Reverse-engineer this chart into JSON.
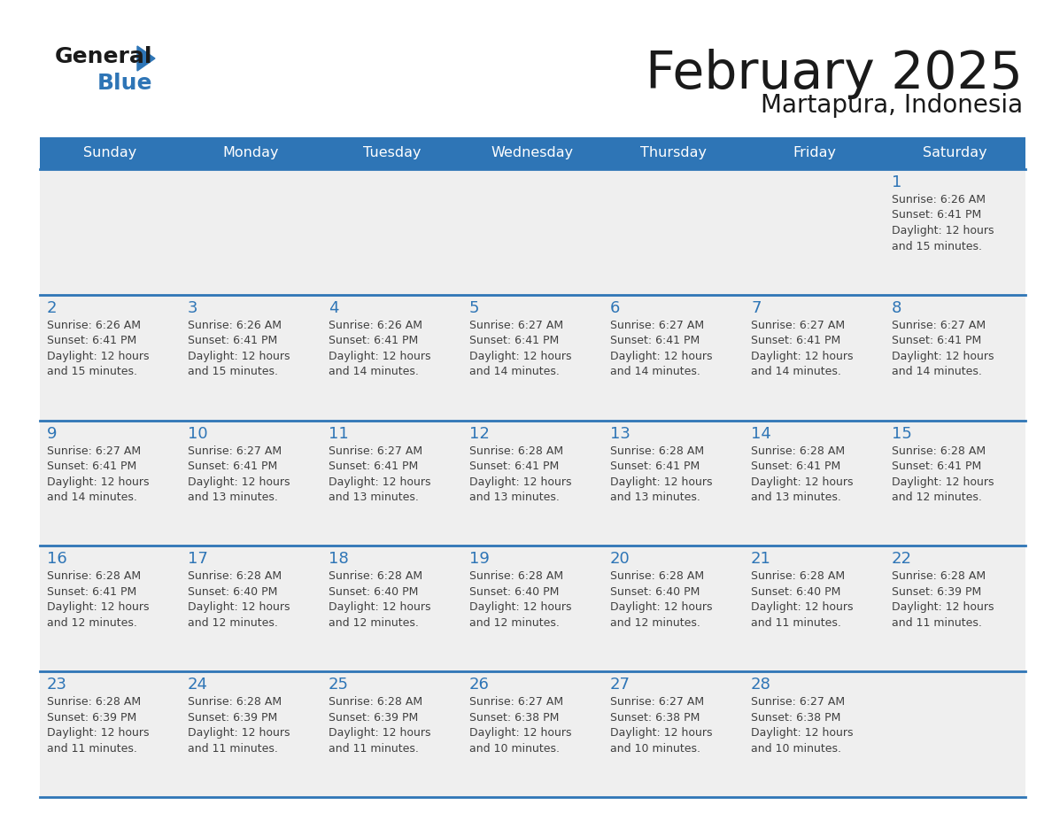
{
  "title": "February 2025",
  "subtitle": "Martapura, Indonesia",
  "header_color": "#2E75B6",
  "header_text_color": "#FFFFFF",
  "day_names": [
    "Sunday",
    "Monday",
    "Tuesday",
    "Wednesday",
    "Thursday",
    "Friday",
    "Saturday"
  ],
  "background_color": "#FFFFFF",
  "cell_bg": "#EFEFEF",
  "separator_color": "#2E75B6",
  "date_color": "#2E75B6",
  "info_color": "#404040",
  "logo_general_color": "#1a1a1a",
  "logo_blue_color": "#2E75B6",
  "logo_triangle_color": "#2E75B6",
  "calendar": [
    [
      null,
      null,
      null,
      null,
      null,
      null,
      {
        "day": 1,
        "sunrise": "6:26 AM",
        "sunset": "6:41 PM",
        "daylight_line1": "Daylight: 12 hours",
        "daylight_line2": "and 15 minutes."
      }
    ],
    [
      {
        "day": 2,
        "sunrise": "6:26 AM",
        "sunset": "6:41 PM",
        "daylight_line1": "Daylight: 12 hours",
        "daylight_line2": "and 15 minutes."
      },
      {
        "day": 3,
        "sunrise": "6:26 AM",
        "sunset": "6:41 PM",
        "daylight_line1": "Daylight: 12 hours",
        "daylight_line2": "and 15 minutes."
      },
      {
        "day": 4,
        "sunrise": "6:26 AM",
        "sunset": "6:41 PM",
        "daylight_line1": "Daylight: 12 hours",
        "daylight_line2": "and 14 minutes."
      },
      {
        "day": 5,
        "sunrise": "6:27 AM",
        "sunset": "6:41 PM",
        "daylight_line1": "Daylight: 12 hours",
        "daylight_line2": "and 14 minutes."
      },
      {
        "day": 6,
        "sunrise": "6:27 AM",
        "sunset": "6:41 PM",
        "daylight_line1": "Daylight: 12 hours",
        "daylight_line2": "and 14 minutes."
      },
      {
        "day": 7,
        "sunrise": "6:27 AM",
        "sunset": "6:41 PM",
        "daylight_line1": "Daylight: 12 hours",
        "daylight_line2": "and 14 minutes."
      },
      {
        "day": 8,
        "sunrise": "6:27 AM",
        "sunset": "6:41 PM",
        "daylight_line1": "Daylight: 12 hours",
        "daylight_line2": "and 14 minutes."
      }
    ],
    [
      {
        "day": 9,
        "sunrise": "6:27 AM",
        "sunset": "6:41 PM",
        "daylight_line1": "Daylight: 12 hours",
        "daylight_line2": "and 14 minutes."
      },
      {
        "day": 10,
        "sunrise": "6:27 AM",
        "sunset": "6:41 PM",
        "daylight_line1": "Daylight: 12 hours",
        "daylight_line2": "and 13 minutes."
      },
      {
        "day": 11,
        "sunrise": "6:27 AM",
        "sunset": "6:41 PM",
        "daylight_line1": "Daylight: 12 hours",
        "daylight_line2": "and 13 minutes."
      },
      {
        "day": 12,
        "sunrise": "6:28 AM",
        "sunset": "6:41 PM",
        "daylight_line1": "Daylight: 12 hours",
        "daylight_line2": "and 13 minutes."
      },
      {
        "day": 13,
        "sunrise": "6:28 AM",
        "sunset": "6:41 PM",
        "daylight_line1": "Daylight: 12 hours",
        "daylight_line2": "and 13 minutes."
      },
      {
        "day": 14,
        "sunrise": "6:28 AM",
        "sunset": "6:41 PM",
        "daylight_line1": "Daylight: 12 hours",
        "daylight_line2": "and 13 minutes."
      },
      {
        "day": 15,
        "sunrise": "6:28 AM",
        "sunset": "6:41 PM",
        "daylight_line1": "Daylight: 12 hours",
        "daylight_line2": "and 12 minutes."
      }
    ],
    [
      {
        "day": 16,
        "sunrise": "6:28 AM",
        "sunset": "6:41 PM",
        "daylight_line1": "Daylight: 12 hours",
        "daylight_line2": "and 12 minutes."
      },
      {
        "day": 17,
        "sunrise": "6:28 AM",
        "sunset": "6:40 PM",
        "daylight_line1": "Daylight: 12 hours",
        "daylight_line2": "and 12 minutes."
      },
      {
        "day": 18,
        "sunrise": "6:28 AM",
        "sunset": "6:40 PM",
        "daylight_line1": "Daylight: 12 hours",
        "daylight_line2": "and 12 minutes."
      },
      {
        "day": 19,
        "sunrise": "6:28 AM",
        "sunset": "6:40 PM",
        "daylight_line1": "Daylight: 12 hours",
        "daylight_line2": "and 12 minutes."
      },
      {
        "day": 20,
        "sunrise": "6:28 AM",
        "sunset": "6:40 PM",
        "daylight_line1": "Daylight: 12 hours",
        "daylight_line2": "and 12 minutes."
      },
      {
        "day": 21,
        "sunrise": "6:28 AM",
        "sunset": "6:40 PM",
        "daylight_line1": "Daylight: 12 hours",
        "daylight_line2": "and 11 minutes."
      },
      {
        "day": 22,
        "sunrise": "6:28 AM",
        "sunset": "6:39 PM",
        "daylight_line1": "Daylight: 12 hours",
        "daylight_line2": "and 11 minutes."
      }
    ],
    [
      {
        "day": 23,
        "sunrise": "6:28 AM",
        "sunset": "6:39 PM",
        "daylight_line1": "Daylight: 12 hours",
        "daylight_line2": "and 11 minutes."
      },
      {
        "day": 24,
        "sunrise": "6:28 AM",
        "sunset": "6:39 PM",
        "daylight_line1": "Daylight: 12 hours",
        "daylight_line2": "and 11 minutes."
      },
      {
        "day": 25,
        "sunrise": "6:28 AM",
        "sunset": "6:39 PM",
        "daylight_line1": "Daylight: 12 hours",
        "daylight_line2": "and 11 minutes."
      },
      {
        "day": 26,
        "sunrise": "6:27 AM",
        "sunset": "6:38 PM",
        "daylight_line1": "Daylight: 12 hours",
        "daylight_line2": "and 10 minutes."
      },
      {
        "day": 27,
        "sunrise": "6:27 AM",
        "sunset": "6:38 PM",
        "daylight_line1": "Daylight: 12 hours",
        "daylight_line2": "and 10 minutes."
      },
      {
        "day": 28,
        "sunrise": "6:27 AM",
        "sunset": "6:38 PM",
        "daylight_line1": "Daylight: 12 hours",
        "daylight_line2": "and 10 minutes."
      },
      null
    ]
  ]
}
